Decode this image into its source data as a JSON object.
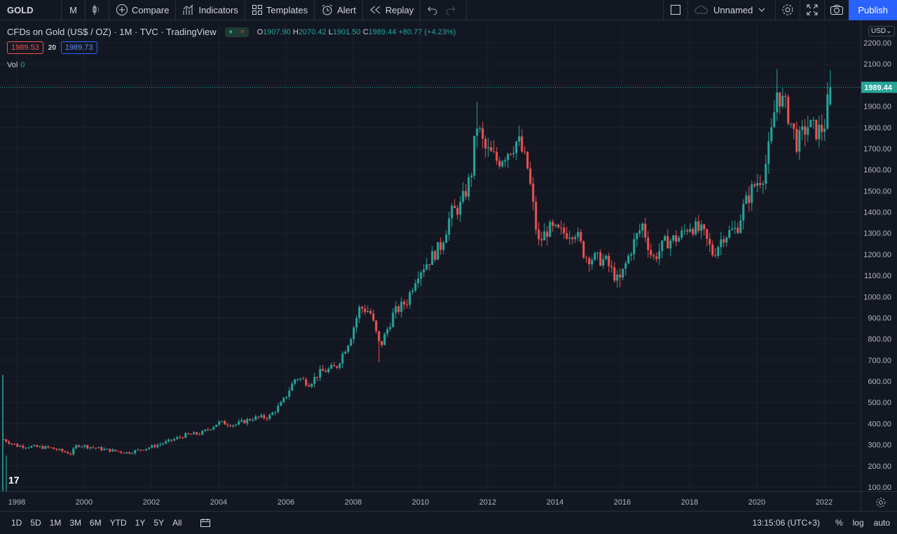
{
  "toolbar": {
    "symbol": "GOLD",
    "interval": "M",
    "compare": "Compare",
    "indicators": "Indicators",
    "templates": "Templates",
    "alert": "Alert",
    "replay": "Replay",
    "layout_name": "Unnamed",
    "publish": "Publish"
  },
  "legend": {
    "title": "CFDs on Gold (US$ / OZ) · 1M · TVC · TradingView",
    "o_label": "O",
    "o": "1907.90",
    "h_label": "H",
    "h": "2070.42",
    "l_label": "L",
    "l": "1901.50",
    "c_label": "C",
    "c": "1989.44",
    "change": "+80.77 (+4.23%)",
    "bid": "1989.53",
    "spread": "20",
    "ask": "1989.73",
    "vol_label": "Vol",
    "vol_value": "0"
  },
  "price_axis": {
    "currency": "USD",
    "current_price": "1989.44"
  },
  "bottom": {
    "ranges": [
      "1D",
      "5D",
      "1M",
      "3M",
      "6M",
      "YTD",
      "1Y",
      "5Y",
      "All"
    ],
    "time": "13:15:06 (UTC+3)",
    "percent": "%",
    "log": "log",
    "auto": "auto"
  },
  "colors": {
    "up": "#26a69a",
    "down": "#ef5350",
    "bg": "#131722",
    "grid": "#1e222d",
    "accent": "#2962ff"
  },
  "chart_data": {
    "type": "candlestick",
    "x_ticks": [
      "1998",
      "2000",
      "2002",
      "2004",
      "2006",
      "2008",
      "2010",
      "2012",
      "2014",
      "2016",
      "2018",
      "2020",
      "2022"
    ],
    "y_ticks": [
      100,
      200,
      300,
      400,
      500,
      600,
      700,
      800,
      900,
      1000,
      1100,
      1200,
      1300,
      1400,
      1500,
      1600,
      1700,
      1800,
      1900,
      2000,
      2100,
      2200
    ],
    "ylim": [
      60,
      2240
    ],
    "xlim": [
      1997.5,
      2023.0
    ],
    "last_price": 1989.44,
    "price_path": [
      [
        1997.6,
        325
      ],
      [
        1998.0,
        295
      ],
      [
        1999.0,
        285
      ],
      [
        1999.6,
        258
      ],
      [
        1999.8,
        300
      ],
      [
        2000.5,
        280
      ],
      [
        2001.3,
        262
      ],
      [
        2002.0,
        290
      ],
      [
        2002.5,
        315
      ],
      [
        2003.0,
        345
      ],
      [
        2003.5,
        355
      ],
      [
        2004.0,
        405
      ],
      [
        2004.5,
        395
      ],
      [
        2005.0,
        425
      ],
      [
        2005.5,
        432
      ],
      [
        2005.9,
        500
      ],
      [
        2006.3,
        620
      ],
      [
        2006.7,
        590
      ],
      [
        2007.0,
        640
      ],
      [
        2007.5,
        668
      ],
      [
        2007.9,
        800
      ],
      [
        2008.2,
        950
      ],
      [
        2008.5,
        930
      ],
      [
        2008.8,
        760
      ],
      [
        2009.2,
        920
      ],
      [
        2009.6,
        980
      ],
      [
        2009.9,
        1110
      ],
      [
        2010.3,
        1180
      ],
      [
        2010.6,
        1240
      ],
      [
        2010.9,
        1390
      ],
      [
        2011.2,
        1430
      ],
      [
        2011.5,
        1570
      ],
      [
        2011.67,
        1820
      ],
      [
        2011.9,
        1700
      ],
      [
        2012.3,
        1640
      ],
      [
        2012.6,
        1690
      ],
      [
        2012.9,
        1740
      ],
      [
        2013.2,
        1600
      ],
      [
        2013.5,
        1250
      ],
      [
        2013.8,
        1320
      ],
      [
        2014.2,
        1300
      ],
      [
        2014.6,
        1310
      ],
      [
        2014.9,
        1190
      ],
      [
        2015.5,
        1170
      ],
      [
        2015.9,
        1065
      ],
      [
        2016.3,
        1240
      ],
      [
        2016.6,
        1340
      ],
      [
        2016.9,
        1175
      ],
      [
        2017.3,
        1260
      ],
      [
        2017.7,
        1280
      ],
      [
        2018.0,
        1340
      ],
      [
        2018.4,
        1300
      ],
      [
        2018.7,
        1200
      ],
      [
        2019.0,
        1290
      ],
      [
        2019.4,
        1320
      ],
      [
        2019.6,
        1420
      ],
      [
        2019.9,
        1520
      ],
      [
        2020.2,
        1580
      ],
      [
        2020.4,
        1730
      ],
      [
        2020.6,
        1970
      ],
      [
        2020.9,
        1880
      ],
      [
        2021.2,
        1720
      ],
      [
        2021.5,
        1810
      ],
      [
        2021.8,
        1780
      ],
      [
        2022.0,
        1800
      ],
      [
        2022.17,
        1989
      ]
    ],
    "spikes": [
      [
        2011.67,
        1920
      ],
      [
        2020.6,
        2075
      ],
      [
        2022.17,
        2070
      ],
      [
        2008.8,
        690
      ],
      [
        2015.9,
        1045
      ]
    ]
  }
}
